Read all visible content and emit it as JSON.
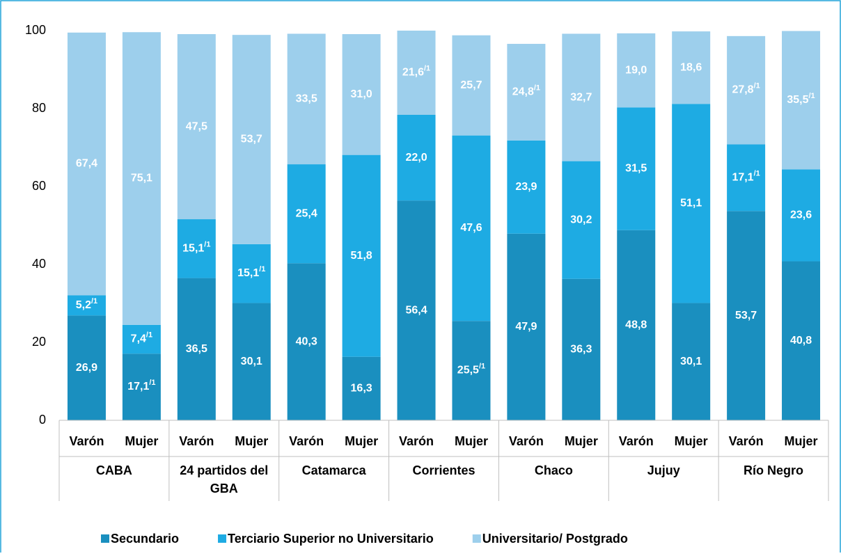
{
  "chart_data": {
    "type": "stacked_bar",
    "categories": [
      "Varón",
      "Mujer",
      "Varón",
      "Mujer",
      "Varón",
      "Mujer",
      "Varón",
      "Mujer",
      "Varón",
      "Mujer",
      "Varón",
      "Mujer",
      "Varón",
      "Mujer"
    ],
    "groups": [
      "CABA",
      "24 partidos del GBA",
      "Catamarca",
      "Corrientes",
      "Chaco",
      "Jujuy",
      "Río Negro"
    ],
    "series": [
      {
        "name": "Secundario",
        "color": "#1a8fbf",
        "values": [
          26.9,
          17.1,
          36.5,
          30.1,
          40.3,
          16.3,
          56.4,
          25.5,
          47.9,
          36.3,
          48.8,
          30.1,
          53.7,
          40.8
        ],
        "value_labels": [
          "26,9",
          "17,1/1",
          "36,5",
          "30,1",
          "40,3",
          "16,3",
          "56,4",
          "25,5/1",
          "47,9",
          "36,3",
          "48,8",
          "30,1",
          "53,7",
          "40,8"
        ]
      },
      {
        "name": "Terciario Superior no Universitario",
        "color": "#1eabe3",
        "values": [
          5.2,
          7.4,
          15.1,
          15.1,
          25.4,
          51.8,
          22.0,
          47.6,
          23.9,
          30.2,
          31.5,
          51.1,
          17.1,
          23.6
        ],
        "value_labels": [
          "5,2/1",
          "7,4/1",
          "15,1/1",
          "15,1/1",
          "25,4",
          "51,8",
          "22,0",
          "47,6",
          "23,9",
          "30,2",
          "31,5",
          "51,1",
          "17,1/1",
          "23,6"
        ]
      },
      {
        "name": "Universitario/ Postgrado",
        "color": "#9dcfec",
        "values": [
          67.4,
          75.1,
          47.5,
          53.7,
          33.5,
          31.0,
          21.6,
          25.7,
          24.8,
          32.7,
          19.0,
          18.6,
          27.8,
          35.5
        ],
        "value_labels": [
          "67,4",
          "75,1",
          "47,5",
          "53,7",
          "33,5",
          "31,0",
          "21,6/1",
          "25,7",
          "24,8/1",
          "32,7",
          "19,0",
          "18,6",
          "27,8/1",
          "35,5/1"
        ]
      }
    ],
    "ylim": [
      0,
      100
    ],
    "yticks": [
      0,
      20,
      40,
      60,
      80,
      100
    ],
    "grid": false
  }
}
